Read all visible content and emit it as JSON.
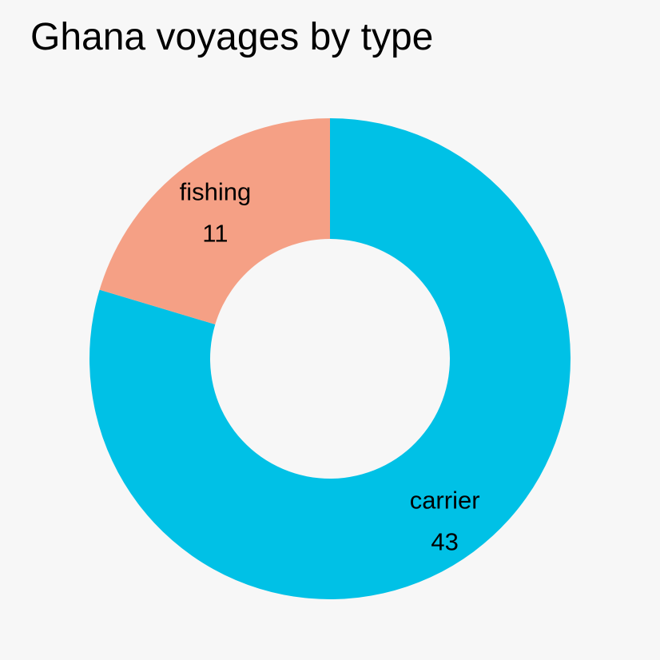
{
  "chart_data": {
    "type": "pie",
    "variant": "donut",
    "title": "Ghana voyages by type",
    "slices": [
      {
        "label": "carrier",
        "value": 43,
        "color": "#00c1e6"
      },
      {
        "label": "fishing",
        "value": 11,
        "color": "#f5a085"
      }
    ],
    "show_values": true,
    "legend": "none"
  }
}
